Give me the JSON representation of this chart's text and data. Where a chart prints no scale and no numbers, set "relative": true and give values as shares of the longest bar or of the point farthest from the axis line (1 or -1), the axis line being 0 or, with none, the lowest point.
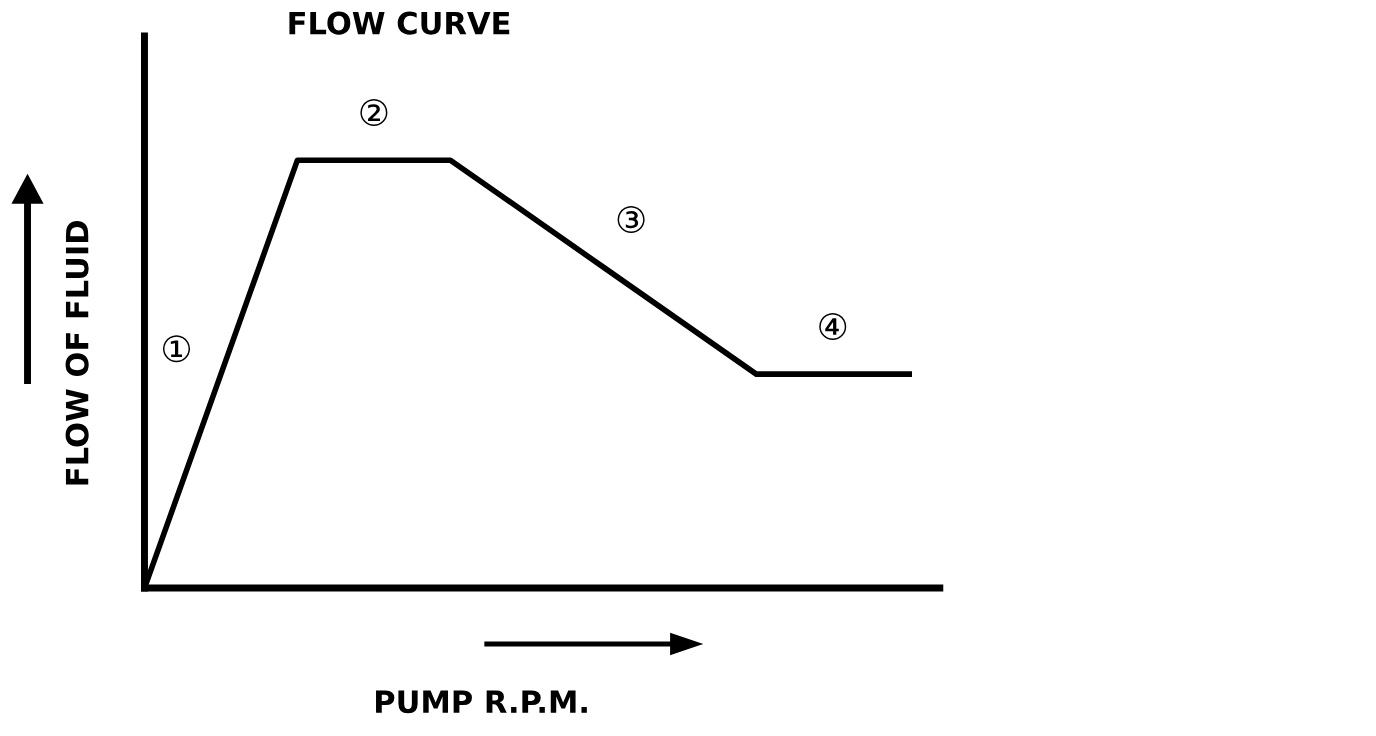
{
  "chart_data": {
    "type": "line",
    "title": "FLOW CURVE",
    "xlabel": "PUMP R.P.M.",
    "ylabel": "FLOW OF FLUID",
    "relative": true,
    "categories": [
      null,
      null,
      null,
      null,
      null,
      null
    ],
    "series": [
      {
        "color": "#000000",
        "values": [
          0,
          1,
          1,
          0.75,
          0.5,
          0.5
        ]
      }
    ],
    "annotations": [
      "①",
      "②",
      "③",
      "④"
    ],
    "marker": "none"
  }
}
